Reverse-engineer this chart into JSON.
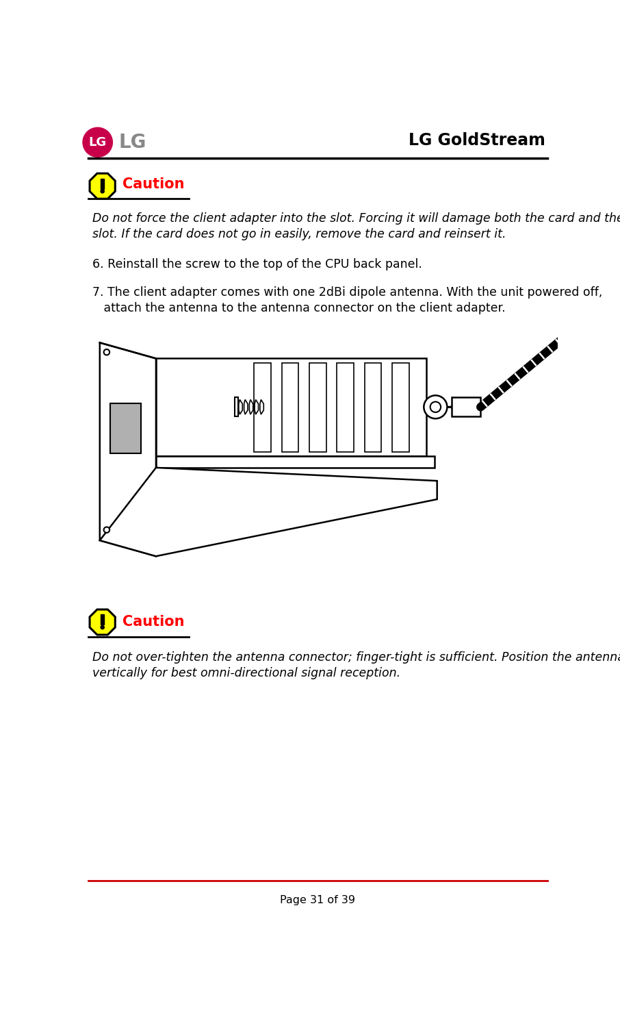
{
  "page_width": 9.06,
  "page_height": 15.07,
  "bg_color": "#ffffff",
  "header_title": "LG GoldStream",
  "header_line_color": "#000000",
  "footer_line_color": "#cc0000",
  "footer_text": "Page 31 of 39",
  "lg_pink": "#c8004a",
  "lg_gray": "#888888",
  "caution_color": "#ff0000",
  "caution_text": "Caution",
  "caution_icon_fill": "#ffff00",
  "caution_icon_border": "#000000",
  "body_text_color": "#000000",
  "italic_text_1a": "Do not force the client adapter into the slot. Forcing it will damage both the card and the",
  "italic_text_1b": "slot. If the card does not go in easily, remove the card and reinsert it.",
  "step6_text": "6. Reinstall the screw to the top of the CPU back panel.",
  "step7_text_a": "7. The client adapter comes with one 2dBi dipole antenna. With the unit powered off,",
  "step7_text_b": "   attach the antenna to the antenna connector on the client adapter.",
  "italic_text_2a": "Do not over-tighten the antenna connector; finger-tight is sufficient. Position the antenna",
  "italic_text_2b": "vertically for best omni-directional signal reception."
}
